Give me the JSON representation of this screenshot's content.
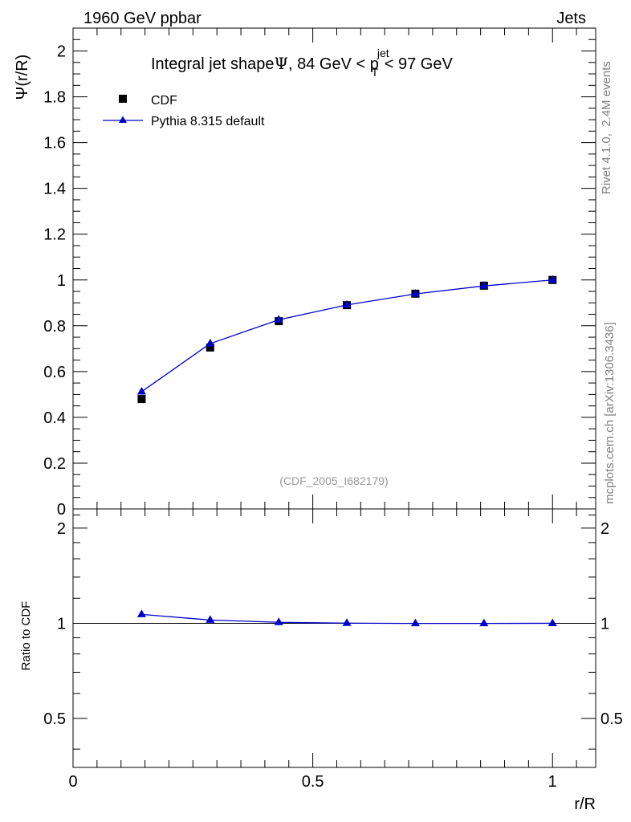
{
  "header": {
    "left": "1960 GeV ppbar",
    "right": "Jets"
  },
  "side_labels": {
    "rivet": "Rivet 4.1.0,  2.4M events",
    "mcplots": "mcplots.cern.ch [arXiv:1306.3436]"
  },
  "chart_data": [
    {
      "type": "scatter",
      "title_parts": {
        "prefix": "Integral jet shape",
        "psi": "Ψ",
        "range_lo": ", 84 GeV < p",
        "sub": "T",
        "sup": "jet",
        "range_hi": " < 97 GeV"
      },
      "ylabel": "Ψ(r/R)",
      "watermark": "(CDF_2005_I682179)",
      "xlim": [
        0,
        1.09
      ],
      "ylim": [
        0,
        2.1
      ],
      "x_ticks": [
        0,
        0.5,
        1
      ],
      "y_ticks": [
        0,
        0.2,
        0.4,
        0.6,
        0.8,
        1,
        1.2,
        1.4,
        1.6,
        1.8,
        2
      ],
      "y_tick_labels": [
        "0",
        "0.2",
        "0.4",
        "0.6",
        "0.8",
        "1",
        "1.2",
        "1.4",
        "1.6",
        "1.8",
        "2"
      ],
      "legend": [
        "CDF",
        "Pythia 8.315 default"
      ],
      "series": [
        {
          "name": "CDF",
          "marker": "square",
          "color": "#000000",
          "x": [
            0.143,
            0.286,
            0.429,
            0.571,
            0.714,
            0.857,
            1.0
          ],
          "y": [
            0.48,
            0.705,
            0.82,
            0.89,
            0.94,
            0.975,
            1.0
          ]
        },
        {
          "name": "Pythia 8.315 default",
          "marker": "triangle",
          "color": "#0000cc",
          "x": [
            0.143,
            0.286,
            0.429,
            0.571,
            0.714,
            0.857,
            1.0
          ],
          "y": [
            0.512,
            0.722,
            0.826,
            0.891,
            0.939,
            0.974,
            1.0
          ]
        }
      ]
    },
    {
      "type": "line",
      "ylabel": "Ratio to CDF",
      "xlabel": "r/R",
      "scale": "log",
      "xlim": [
        0,
        1.09
      ],
      "ylim": [
        0.35,
        2.3
      ],
      "x_ticks": [
        0,
        0.5,
        1
      ],
      "x_tick_labels": [
        "0",
        "0.5",
        "1"
      ],
      "y_ticks": [
        0.5,
        1,
        2
      ],
      "y_tick_labels": [
        "0.5",
        "1",
        "2"
      ],
      "reference_line": 1,
      "series": [
        {
          "name": "Pythia 8.315 default / CDF",
          "marker": "triangle",
          "color": "#0000cc",
          "x": [
            0.143,
            0.286,
            0.429,
            0.571,
            0.714,
            0.857,
            1.0
          ],
          "y": [
            1.067,
            1.024,
            1.007,
            1.001,
            0.999,
            0.999,
            1.0
          ]
        }
      ]
    }
  ]
}
